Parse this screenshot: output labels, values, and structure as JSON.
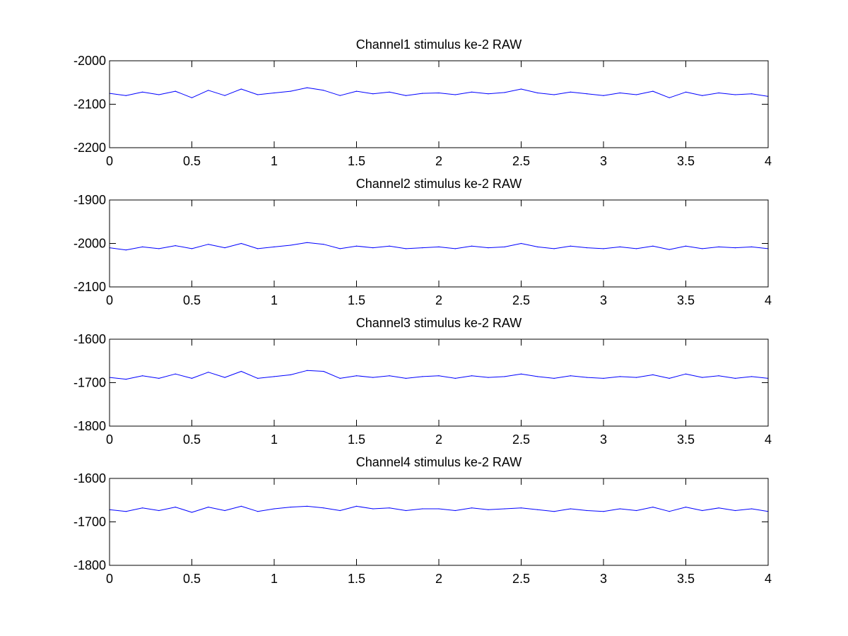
{
  "figure": {
    "background": "#ffffff",
    "line_color": "#0000ff"
  },
  "chart_data": [
    {
      "type": "line",
      "title": "Channel1 stimulus ke-2 RAW",
      "xlabel": "",
      "ylabel": "",
      "xlim": [
        0,
        4
      ],
      "ylim": [
        -2200,
        -2000
      ],
      "xticks": [
        0,
        0.5,
        1,
        1.5,
        2,
        2.5,
        3,
        3.5,
        4
      ],
      "xtick_labels": [
        "0",
        "0.5",
        "1",
        "1.5",
        "2",
        "2.5",
        "3",
        "3.5",
        "4"
      ],
      "yticks": [
        -2000,
        -2100,
        -2200
      ],
      "ytick_labels": [
        "-2000",
        "-2100",
        "-2200"
      ],
      "grid": false,
      "series": [
        {
          "color": "#0000ff",
          "x": [
            0.0,
            0.1,
            0.2,
            0.3,
            0.4,
            0.5,
            0.6,
            0.7,
            0.8,
            0.9,
            1.0,
            1.1,
            1.2,
            1.3,
            1.4,
            1.5,
            1.6,
            1.7,
            1.8,
            1.9,
            2.0,
            2.1,
            2.2,
            2.3,
            2.4,
            2.5,
            2.6,
            2.7,
            2.8,
            2.9,
            3.0,
            3.1,
            3.2,
            3.3,
            3.4,
            3.5,
            3.6,
            3.7,
            3.8,
            3.9,
            4.0
          ],
          "values": [
            -2075,
            -2080,
            -2072,
            -2078,
            -2070,
            -2085,
            -2068,
            -2080,
            -2065,
            -2078,
            -2074,
            -2070,
            -2062,
            -2068,
            -2080,
            -2070,
            -2076,
            -2072,
            -2080,
            -2075,
            -2074,
            -2078,
            -2072,
            -2076,
            -2073,
            -2065,
            -2074,
            -2078,
            -2072,
            -2076,
            -2080,
            -2074,
            -2078,
            -2070,
            -2085,
            -2072,
            -2080,
            -2074,
            -2078,
            -2076,
            -2082
          ]
        }
      ]
    },
    {
      "type": "line",
      "title": "Channel2 stimulus ke-2 RAW",
      "xlabel": "",
      "ylabel": "",
      "xlim": [
        0,
        4
      ],
      "ylim": [
        -2100,
        -1900
      ],
      "xticks": [
        0,
        0.5,
        1,
        1.5,
        2,
        2.5,
        3,
        3.5,
        4
      ],
      "xtick_labels": [
        "0",
        "0.5",
        "1",
        "1.5",
        "2",
        "2.5",
        "3",
        "3.5",
        "4"
      ],
      "yticks": [
        -1900,
        -2000,
        -2100
      ],
      "ytick_labels": [
        "-1900",
        "-2000",
        "-2100"
      ],
      "grid": false,
      "series": [
        {
          "color": "#0000ff",
          "x": [
            0.0,
            0.1,
            0.2,
            0.3,
            0.4,
            0.5,
            0.6,
            0.7,
            0.8,
            0.9,
            1.0,
            1.1,
            1.2,
            1.3,
            1.4,
            1.5,
            1.6,
            1.7,
            1.8,
            1.9,
            2.0,
            2.1,
            2.2,
            2.3,
            2.4,
            2.5,
            2.6,
            2.7,
            2.8,
            2.9,
            3.0,
            3.1,
            3.2,
            3.3,
            3.4,
            3.5,
            3.6,
            3.7,
            3.8,
            3.9,
            4.0
          ],
          "values": [
            -2010,
            -2015,
            -2008,
            -2012,
            -2005,
            -2012,
            -2002,
            -2010,
            -2000,
            -2012,
            -2008,
            -2004,
            -1998,
            -2002,
            -2012,
            -2006,
            -2010,
            -2006,
            -2012,
            -2010,
            -2008,
            -2012,
            -2006,
            -2010,
            -2008,
            -2000,
            -2008,
            -2012,
            -2006,
            -2010,
            -2012,
            -2008,
            -2012,
            -2006,
            -2014,
            -2006,
            -2012,
            -2008,
            -2010,
            -2008,
            -2012
          ]
        }
      ]
    },
    {
      "type": "line",
      "title": "Channel3 stimulus ke-2 RAW",
      "xlabel": "",
      "ylabel": "",
      "xlim": [
        0,
        4
      ],
      "ylim": [
        -1800,
        -1600
      ],
      "xticks": [
        0,
        0.5,
        1,
        1.5,
        2,
        2.5,
        3,
        3.5,
        4
      ],
      "xtick_labels": [
        "0",
        "0.5",
        "1",
        "1.5",
        "2",
        "2.5",
        "3",
        "3.5",
        "4"
      ],
      "yticks": [
        -1600,
        -1700,
        -1800
      ],
      "ytick_labels": [
        "-1600",
        "-1700",
        "-1800"
      ],
      "grid": false,
      "series": [
        {
          "color": "#0000ff",
          "x": [
            0.0,
            0.1,
            0.2,
            0.3,
            0.4,
            0.5,
            0.6,
            0.7,
            0.8,
            0.9,
            1.0,
            1.1,
            1.2,
            1.3,
            1.4,
            1.5,
            1.6,
            1.7,
            1.8,
            1.9,
            2.0,
            2.1,
            2.2,
            2.3,
            2.4,
            2.5,
            2.6,
            2.7,
            2.8,
            2.9,
            3.0,
            3.1,
            3.2,
            3.3,
            3.4,
            3.5,
            3.6,
            3.7,
            3.8,
            3.9,
            4.0
          ],
          "values": [
            -1688,
            -1692,
            -1684,
            -1690,
            -1680,
            -1690,
            -1676,
            -1688,
            -1674,
            -1690,
            -1686,
            -1682,
            -1672,
            -1674,
            -1690,
            -1684,
            -1688,
            -1684,
            -1690,
            -1686,
            -1684,
            -1690,
            -1684,
            -1688,
            -1686,
            -1680,
            -1686,
            -1690,
            -1684,
            -1688,
            -1690,
            -1686,
            -1688,
            -1682,
            -1690,
            -1680,
            -1688,
            -1684,
            -1690,
            -1686,
            -1690
          ]
        }
      ]
    },
    {
      "type": "line",
      "title": "Channel4 stimulus ke-2 RAW",
      "xlabel": "",
      "ylabel": "",
      "xlim": [
        0,
        4
      ],
      "ylim": [
        -1800,
        -1600
      ],
      "xticks": [
        0,
        0.5,
        1,
        1.5,
        2,
        2.5,
        3,
        3.5,
        4
      ],
      "xtick_labels": [
        "0",
        "0.5",
        "1",
        "1.5",
        "2",
        "2.5",
        "3",
        "3.5",
        "4"
      ],
      "yticks": [
        -1600,
        -1700,
        -1800
      ],
      "ytick_labels": [
        "-1600",
        "-1700",
        "-1800"
      ],
      "grid": false,
      "series": [
        {
          "color": "#0000ff",
          "x": [
            0.0,
            0.1,
            0.2,
            0.3,
            0.4,
            0.5,
            0.6,
            0.7,
            0.8,
            0.9,
            1.0,
            1.1,
            1.2,
            1.3,
            1.4,
            1.5,
            1.6,
            1.7,
            1.8,
            1.9,
            2.0,
            2.1,
            2.2,
            2.3,
            2.4,
            2.5,
            2.6,
            2.7,
            2.8,
            2.9,
            3.0,
            3.1,
            3.2,
            3.3,
            3.4,
            3.5,
            3.6,
            3.7,
            3.8,
            3.9,
            4.0
          ],
          "values": [
            -1672,
            -1676,
            -1668,
            -1674,
            -1666,
            -1678,
            -1666,
            -1674,
            -1664,
            -1676,
            -1670,
            -1666,
            -1664,
            -1668,
            -1674,
            -1664,
            -1670,
            -1668,
            -1674,
            -1670,
            -1670,
            -1674,
            -1668,
            -1672,
            -1670,
            -1668,
            -1672,
            -1676,
            -1670,
            -1674,
            -1676,
            -1670,
            -1674,
            -1666,
            -1676,
            -1666,
            -1674,
            -1668,
            -1674,
            -1670,
            -1676
          ]
        }
      ]
    }
  ]
}
